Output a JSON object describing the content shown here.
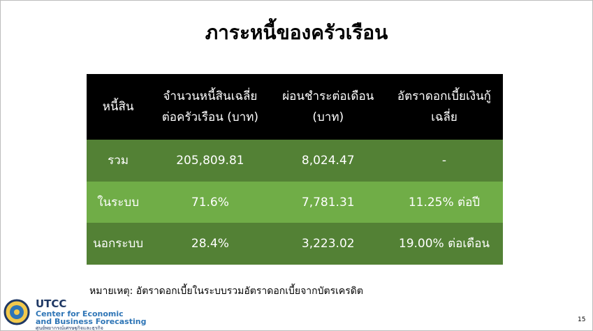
{
  "title": "ภาระหนี้ของครัวเรือน",
  "table": {
    "header": [
      [
        "หนี้สิน"
      ],
      [
        "จำนวนหนี้สินเฉลี่ย",
        "ต่อครัวเรือน (บาท)"
      ],
      [
        "ผ่อนชำระต่อเดือน",
        "(บาท)"
      ],
      [
        "อัตราดอกเบี้ยเงินกู้",
        "เฉลี่ย"
      ]
    ],
    "rows": [
      [
        "รวม",
        "205,809.81",
        "8,024.47",
        "-"
      ],
      [
        "ในระบบ",
        "71.6%",
        "7,781.31",
        "11.25% ต่อปี"
      ],
      [
        "นอกระบบ",
        "28.4%",
        "3,223.02",
        "19.00% ต่อเดือน"
      ]
    ]
  },
  "note": "หมายเหตุ: อัตราดอกเบี้ยในระบบรวมอัตราดอกเบี้ยจากบัตรเครดิต",
  "logo": {
    "name": "UTCC",
    "line1": "Center for Economic",
    "line2": "and Business Forecasting",
    "thai": "ศูนย์พยากรณ์เศรษฐกิจและธุรกิจ"
  },
  "page_number": "15"
}
